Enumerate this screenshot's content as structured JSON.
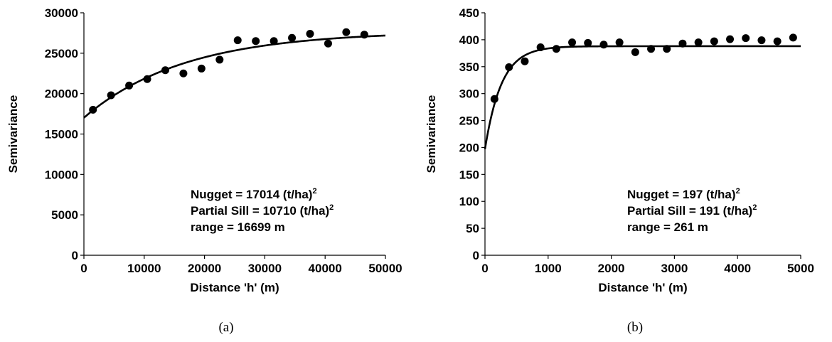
{
  "chart_data": [
    {
      "type": "scatter",
      "xlabel": "Distance 'h' (m)",
      "ylabel": "Semivariance",
      "xlim": [
        0,
        50000
      ],
      "ylim": [
        0,
        30000
      ],
      "xticks": [
        0,
        10000,
        20000,
        30000,
        40000,
        50000
      ],
      "yticks": [
        0,
        5000,
        10000,
        15000,
        20000,
        25000,
        30000
      ],
      "x": [
        1500,
        4500,
        7500,
        10500,
        13500,
        16500,
        19500,
        22500,
        25500,
        28500,
        31500,
        34500,
        37500,
        40500,
        43500,
        46500
      ],
      "y": [
        18000,
        19800,
        21000,
        21800,
        22900,
        22500,
        23100,
        24200,
        26600,
        26500,
        26500,
        26900,
        27400,
        26200,
        27600,
        27300
      ],
      "model": {
        "nugget": 17014,
        "partial_sill": 10710,
        "range": 16699
      },
      "annotations": [
        {
          "text": "Nugget =  17014 (t/ha)",
          "sup": "2"
        },
        {
          "text": "Partial Sill = 10710 (t/ha)",
          "sup": "2"
        },
        {
          "text": "range = 16699 m",
          "sup": ""
        }
      ],
      "caption": "(a)"
    },
    {
      "type": "scatter",
      "xlabel": "Distance 'h' (m)",
      "ylabel": "Semivariance",
      "xlim": [
        0,
        5000
      ],
      "ylim": [
        0,
        450
      ],
      "xticks": [
        0,
        1000,
        2000,
        3000,
        4000,
        5000
      ],
      "yticks": [
        0,
        50,
        100,
        150,
        200,
        250,
        300,
        350,
        400,
        450
      ],
      "x": [
        150,
        380,
        630,
        880,
        1130,
        1380,
        1630,
        1880,
        2130,
        2380,
        2630,
        2880,
        3130,
        3380,
        3630,
        3880,
        4130,
        4380,
        4630,
        4880
      ],
      "y": [
        290,
        349,
        360,
        386,
        383,
        395,
        394,
        391,
        395,
        377,
        383,
        383,
        393,
        395,
        397,
        401,
        403,
        399,
        397,
        404
      ],
      "model": {
        "nugget": 197,
        "partial_sill": 191,
        "range": 261
      },
      "annotations": [
        {
          "text": "Nugget =  197 (t/ha)",
          "sup": "2"
        },
        {
          "text": "Partial Sill = 191 (t/ha)",
          "sup": "2"
        },
        {
          "text": "range = 261 m",
          "sup": ""
        }
      ],
      "caption": "(b)"
    }
  ]
}
